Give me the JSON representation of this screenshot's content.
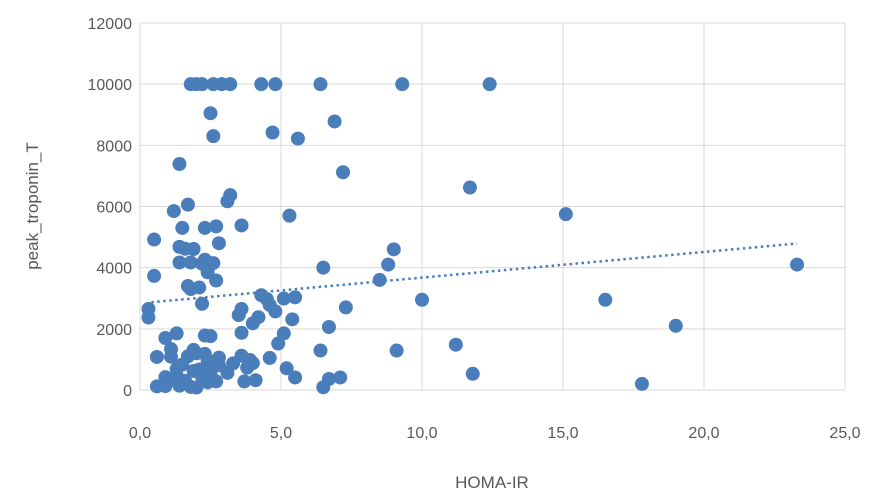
{
  "chart_data": {
    "type": "scatter",
    "xlabel": "HOMA-IR",
    "ylabel": "peak_troponin_T",
    "xlim": [
      0,
      25
    ],
    "ylim": [
      0,
      12000
    ],
    "x_ticks": [
      0,
      5,
      10,
      15,
      20,
      25
    ],
    "y_ticks": [
      0,
      2000,
      4000,
      6000,
      8000,
      10000,
      12000
    ],
    "x_tick_labels": [
      "0,0",
      "5,0",
      "10,0",
      "15,0",
      "20,0",
      "25,0"
    ],
    "y_tick_labels": [
      "0",
      "2000",
      "4000",
      "6000",
      "8000",
      "10000",
      "12000"
    ],
    "grid": true,
    "legend": "none",
    "colors": {
      "points": "#4a7ebb",
      "trendline": "#4a7ebb",
      "grid": "#d9d9d9",
      "text": "#595959"
    },
    "trendline": {
      "type": "linear",
      "style": "dotted",
      "x": [
        0.4,
        23.3
      ],
      "y": [
        2870,
        4790
      ]
    },
    "series": [
      {
        "points": [
          [
            1.8,
            10000
          ],
          [
            2.0,
            10000
          ],
          [
            2.2,
            10000
          ],
          [
            2.6,
            10000
          ],
          [
            2.9,
            10000
          ],
          [
            3.2,
            10000
          ],
          [
            4.3,
            10000
          ],
          [
            4.8,
            10000
          ],
          [
            6.4,
            10000
          ],
          [
            9.3,
            10000
          ],
          [
            12.4,
            10000
          ],
          [
            2.5,
            9050
          ],
          [
            6.9,
            8780
          ],
          [
            2.6,
            8300
          ],
          [
            4.7,
            8420
          ],
          [
            5.6,
            8220
          ],
          [
            1.4,
            7390
          ],
          [
            7.2,
            7120
          ],
          [
            11.7,
            6620
          ],
          [
            3.2,
            6370
          ],
          [
            3.1,
            6170
          ],
          [
            1.7,
            6060
          ],
          [
            1.2,
            5850
          ],
          [
            5.3,
            5700
          ],
          [
            15.1,
            5750
          ],
          [
            3.6,
            5380
          ],
          [
            2.7,
            5350
          ],
          [
            2.3,
            5300
          ],
          [
            1.5,
            5300
          ],
          [
            0.5,
            4920
          ],
          [
            2.8,
            4800
          ],
          [
            1.4,
            4680
          ],
          [
            1.6,
            4620
          ],
          [
            1.9,
            4610
          ],
          [
            9.0,
            4600
          ],
          [
            2.3,
            4260
          ],
          [
            2.2,
            4130
          ],
          [
            1.4,
            4170
          ],
          [
            1.8,
            4170
          ],
          [
            2.6,
            4150
          ],
          [
            8.8,
            4100
          ],
          [
            6.5,
            4000
          ],
          [
            23.3,
            4100
          ],
          [
            2.4,
            3850
          ],
          [
            0.5,
            3730
          ],
          [
            2.7,
            3580
          ],
          [
            8.5,
            3600
          ],
          [
            1.7,
            3400
          ],
          [
            1.8,
            3300
          ],
          [
            2.1,
            3350
          ],
          [
            4.3,
            3100
          ],
          [
            5.5,
            3030
          ],
          [
            4.5,
            2970
          ],
          [
            5.1,
            2990
          ],
          [
            16.5,
            2950
          ],
          [
            10.0,
            2950
          ],
          [
            2.2,
            2820
          ],
          [
            4.6,
            2780
          ],
          [
            7.3,
            2700
          ],
          [
            3.6,
            2650
          ],
          [
            4.8,
            2570
          ],
          [
            0.3,
            2650
          ],
          [
            3.5,
            2450
          ],
          [
            4.2,
            2380
          ],
          [
            0.3,
            2370
          ],
          [
            4.0,
            2180
          ],
          [
            5.4,
            2310
          ],
          [
            6.7,
            2060
          ],
          [
            19.0,
            2100
          ],
          [
            1.3,
            1850
          ],
          [
            3.6,
            1870
          ],
          [
            5.1,
            1850
          ],
          [
            2.3,
            1780
          ],
          [
            2.5,
            1760
          ],
          [
            0.9,
            1700
          ],
          [
            4.9,
            1520
          ],
          [
            11.2,
            1480
          ],
          [
            6.4,
            1290
          ],
          [
            9.1,
            1290
          ],
          [
            1.1,
            1340
          ],
          [
            1.9,
            1310
          ],
          [
            2.0,
            1200
          ],
          [
            2.3,
            1180
          ],
          [
            3.6,
            1120
          ],
          [
            0.6,
            1080
          ],
          [
            1.1,
            1090
          ],
          [
            1.7,
            1100
          ],
          [
            2.8,
            1060
          ],
          [
            4.6,
            1050
          ],
          [
            3.9,
            980
          ],
          [
            2.4,
            970
          ],
          [
            3.3,
            870
          ],
          [
            4.0,
            880
          ],
          [
            1.5,
            830
          ],
          [
            2.8,
            810
          ],
          [
            3.8,
            730
          ],
          [
            1.3,
            690
          ],
          [
            2.1,
            670
          ],
          [
            5.2,
            710
          ],
          [
            1.9,
            620
          ],
          [
            2.5,
            560
          ],
          [
            3.1,
            560
          ],
          [
            0.9,
            420
          ],
          [
            1.3,
            470
          ],
          [
            2.2,
            430
          ],
          [
            5.5,
            410
          ],
          [
            7.1,
            410
          ],
          [
            11.8,
            530
          ],
          [
            6.7,
            360
          ],
          [
            1.0,
            320
          ],
          [
            1.6,
            300
          ],
          [
            2.7,
            280
          ],
          [
            3.7,
            280
          ],
          [
            4.1,
            320
          ],
          [
            0.6,
            120
          ],
          [
            0.9,
            130
          ],
          [
            1.4,
            140
          ],
          [
            1.8,
            100
          ],
          [
            2.0,
            80
          ],
          [
            2.4,
            250
          ],
          [
            6.5,
            90
          ],
          [
            17.8,
            200
          ]
        ]
      }
    ]
  }
}
